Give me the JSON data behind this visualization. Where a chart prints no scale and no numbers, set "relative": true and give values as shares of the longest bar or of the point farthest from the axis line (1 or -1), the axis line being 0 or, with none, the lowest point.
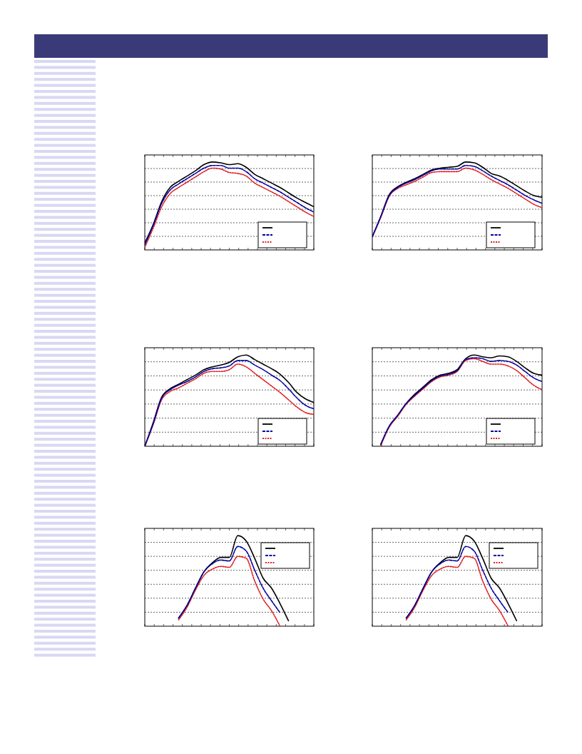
{
  "chart_data": [
    {
      "type": "line",
      "relative": true,
      "categories": [
        null,
        null,
        null,
        null,
        null,
        null,
        null,
        null,
        null,
        null,
        null,
        null,
        null,
        null,
        null,
        null,
        null,
        null,
        null,
        null,
        null
      ],
      "series": [
        {
          "color": "#000000",
          "line_style": "solid",
          "values": [
            0.08,
            0.29,
            0.55,
            0.71,
            0.78,
            0.84,
            0.9,
            0.97,
            1.0,
            0.99,
            0.97,
            0.98,
            0.94,
            0.86,
            0.81,
            0.76,
            0.71,
            0.65,
            0.59,
            0.54,
            0.49
          ]
        },
        {
          "color": "#0000a0",
          "line_style": "dashed",
          "values": [
            0.06,
            0.28,
            0.53,
            0.68,
            0.75,
            0.81,
            0.87,
            0.93,
            0.96,
            0.96,
            0.93,
            0.93,
            0.89,
            0.81,
            0.76,
            0.71,
            0.66,
            0.6,
            0.54,
            0.48,
            0.43
          ]
        },
        {
          "color": "#e02020",
          "line_style": "dotted",
          "values": [
            0.03,
            0.25,
            0.49,
            0.64,
            0.71,
            0.77,
            0.83,
            0.89,
            0.93,
            0.92,
            0.88,
            0.87,
            0.84,
            0.76,
            0.71,
            0.66,
            0.61,
            0.55,
            0.49,
            0.43,
            0.38
          ]
        }
      ]
    },
    {
      "type": "line",
      "relative": true,
      "categories": [
        null,
        null,
        null,
        null,
        null,
        null,
        null,
        null,
        null,
        null,
        null,
        null,
        null,
        null,
        null,
        null,
        null,
        null,
        null,
        null,
        null
      ],
      "series": [
        {
          "color": "#000000",
          "line_style": "solid",
          "values": [
            0.15,
            0.38,
            0.63,
            0.72,
            0.77,
            0.81,
            0.86,
            0.91,
            0.93,
            0.94,
            0.95,
            1.0,
            0.99,
            0.94,
            0.87,
            0.84,
            0.79,
            0.73,
            0.67,
            0.62,
            0.6
          ]
        },
        {
          "color": "#0000a0",
          "line_style": "dashed",
          "values": [
            0.15,
            0.38,
            0.62,
            0.71,
            0.76,
            0.8,
            0.85,
            0.9,
            0.92,
            0.92,
            0.92,
            0.96,
            0.95,
            0.9,
            0.84,
            0.79,
            0.74,
            0.68,
            0.62,
            0.57,
            0.53
          ]
        },
        {
          "color": "#e02020",
          "line_style": "dotted",
          "values": [
            0.15,
            0.37,
            0.61,
            0.7,
            0.74,
            0.78,
            0.83,
            0.88,
            0.89,
            0.89,
            0.89,
            0.93,
            0.91,
            0.86,
            0.8,
            0.75,
            0.7,
            0.64,
            0.58,
            0.52,
            0.48
          ]
        }
      ]
    },
    {
      "type": "line",
      "relative": true,
      "categories": [
        null,
        null,
        null,
        null,
        null,
        null,
        null,
        null,
        null,
        null,
        null,
        null,
        null,
        null,
        null,
        null,
        null,
        null,
        null,
        null,
        null
      ],
      "series": [
        {
          "color": "#000000",
          "line_style": "solid",
          "values": [
            0,
            0.26,
            0.54,
            0.63,
            0.68,
            0.73,
            0.78,
            0.84,
            0.87,
            0.89,
            0.92,
            0.98,
            1.0,
            0.95,
            0.9,
            0.85,
            0.79,
            0.7,
            0.59,
            0.52,
            0.48
          ]
        },
        {
          "color": "#0000a0",
          "line_style": "dashed",
          "values": [
            0,
            0.25,
            0.53,
            0.62,
            0.67,
            0.71,
            0.76,
            0.82,
            0.85,
            0.86,
            0.88,
            0.94,
            0.94,
            0.89,
            0.84,
            0.78,
            0.72,
            0.63,
            0.53,
            0.45,
            0.41
          ]
        },
        {
          "color": "#e02020",
          "line_style": "dotted",
          "values": [
            0,
            0.24,
            0.51,
            0.6,
            0.64,
            0.69,
            0.74,
            0.8,
            0.82,
            0.82,
            0.84,
            0.9,
            0.87,
            0.8,
            0.73,
            0.66,
            0.59,
            0.51,
            0.43,
            0.37,
            0.35
          ]
        }
      ]
    },
    {
      "type": "line",
      "relative": true,
      "categories": [
        null,
        null,
        null,
        null,
        null,
        null,
        null,
        null,
        null,
        null,
        null,
        null,
        null,
        null,
        null,
        null,
        null,
        null,
        null,
        null,
        null
      ],
      "series": [
        {
          "color": "#000000",
          "line_style": "solid",
          "values": [
            null,
            0.02,
            0.22,
            0.34,
            0.47,
            0.57,
            0.65,
            0.73,
            0.78,
            0.8,
            0.84,
            0.96,
            1.0,
            0.98,
            0.97,
            0.99,
            0.98,
            0.93,
            0.86,
            0.8,
            0.78
          ]
        },
        {
          "color": "#0000a0",
          "line_style": "dashed",
          "values": [
            null,
            0.02,
            0.22,
            0.34,
            0.47,
            0.56,
            0.64,
            0.72,
            0.77,
            0.79,
            0.83,
            0.95,
            0.97,
            0.96,
            0.93,
            0.94,
            0.93,
            0.89,
            0.82,
            0.75,
            0.71
          ]
        },
        {
          "color": "#e02020",
          "line_style": "dotted",
          "values": [
            null,
            0.01,
            0.21,
            0.33,
            0.46,
            0.55,
            0.63,
            0.71,
            0.76,
            0.78,
            0.82,
            0.94,
            0.96,
            0.93,
            0.9,
            0.9,
            0.88,
            0.83,
            0.75,
            0.67,
            0.62
          ]
        }
      ]
    },
    {
      "type": "line",
      "relative": true,
      "categories": [
        null,
        null,
        null,
        null,
        null,
        null,
        null,
        null,
        null,
        null,
        null,
        null,
        null,
        null,
        null,
        null,
        null,
        null,
        null,
        null,
        null
      ],
      "series": [
        {
          "color": "#000000",
          "line_style": "solid",
          "values": [
            null,
            null,
            null,
            null,
            0.09,
            0.23,
            0.42,
            0.6,
            0.7,
            0.76,
            0.76,
            1.0,
            0.94,
            0.75,
            0.53,
            0.42,
            0.25,
            0.06,
            null,
            null,
            null
          ]
        },
        {
          "color": "#0000a0",
          "line_style": "dashed",
          "values": [
            null,
            null,
            null,
            null,
            0.09,
            0.23,
            0.42,
            0.6,
            0.69,
            0.73,
            0.72,
            0.88,
            0.83,
            0.62,
            0.42,
            0.28,
            0.15,
            null,
            null,
            null,
            null
          ]
        },
        {
          "color": "#e02020",
          "line_style": "dotted",
          "values": [
            null,
            null,
            null,
            null,
            0.07,
            0.21,
            0.4,
            0.56,
            0.63,
            0.66,
            0.65,
            0.77,
            0.75,
            0.5,
            0.3,
            0.17,
            0,
            null,
            null,
            null,
            null
          ]
        }
      ]
    },
    {
      "type": "line",
      "relative": true,
      "categories": [
        null,
        null,
        null,
        null,
        null,
        null,
        null,
        null,
        null,
        null,
        null,
        null,
        null,
        null,
        null,
        null,
        null,
        null,
        null,
        null,
        null
      ],
      "series": [
        {
          "color": "#000000",
          "line_style": "solid",
          "values": [
            null,
            null,
            null,
            null,
            0.09,
            0.23,
            0.42,
            0.6,
            0.7,
            0.76,
            0.76,
            1.0,
            0.94,
            0.75,
            0.53,
            0.42,
            0.25,
            0.06,
            null,
            null,
            null
          ]
        },
        {
          "color": "#0000a0",
          "line_style": "dashed",
          "values": [
            null,
            null,
            null,
            null,
            0.09,
            0.23,
            0.42,
            0.6,
            0.69,
            0.73,
            0.72,
            0.88,
            0.83,
            0.62,
            0.42,
            0.28,
            0.15,
            null,
            null,
            null,
            null
          ]
        },
        {
          "color": "#e02020",
          "line_style": "dotted",
          "values": [
            null,
            null,
            null,
            null,
            0.07,
            0.21,
            0.4,
            0.56,
            0.63,
            0.66,
            0.65,
            0.77,
            0.75,
            0.5,
            0.3,
            0.17,
            0,
            null,
            null,
            null,
            null
          ]
        }
      ]
    }
  ]
}
